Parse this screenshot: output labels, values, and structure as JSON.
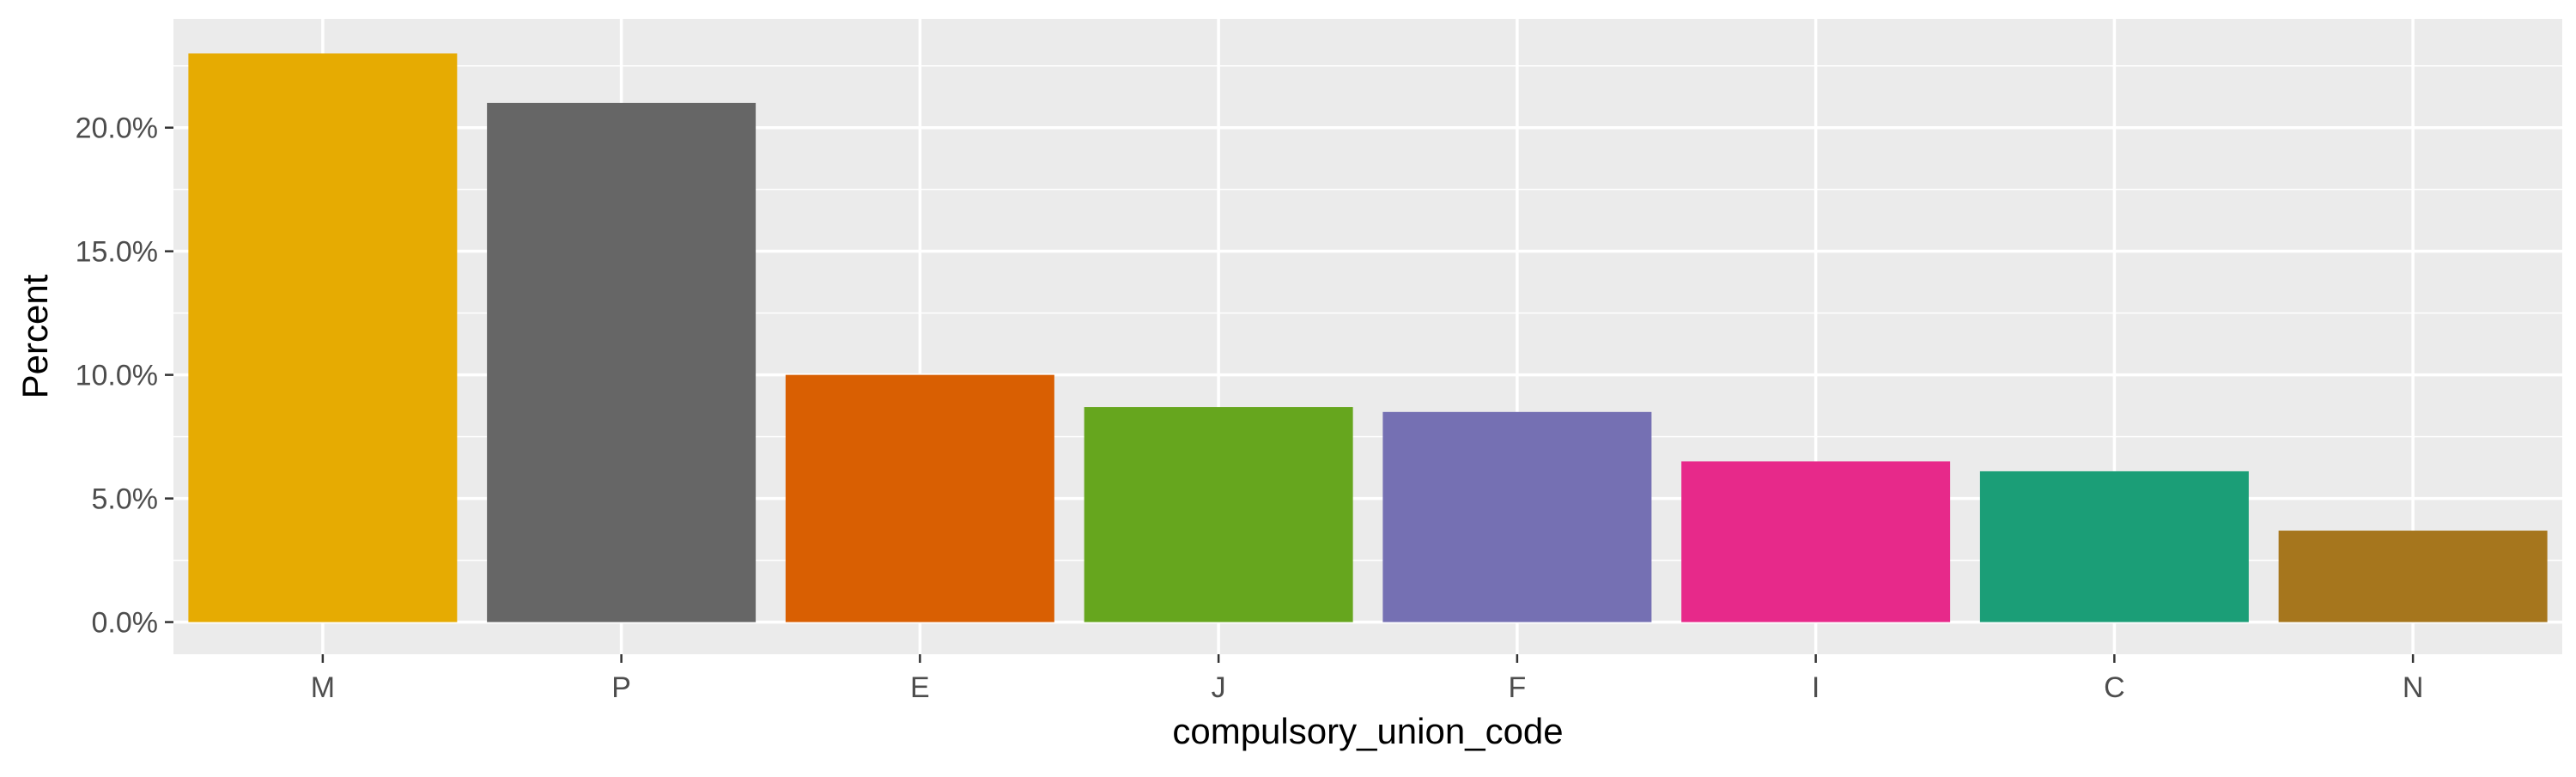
{
  "chart_data": {
    "type": "bar",
    "categories": [
      "M",
      "P",
      "E",
      "J",
      "F",
      "I",
      "C",
      "N"
    ],
    "values": [
      23.0,
      21.0,
      10.0,
      8.7,
      8.5,
      6.5,
      6.1,
      3.7
    ],
    "value_unit": "percent",
    "colors": [
      "#E6AB02",
      "#666666",
      "#D95F02",
      "#66A61E",
      "#7570B3",
      "#E7298A",
      "#1B9E77",
      "#A6761D"
    ],
    "title": "",
    "xlabel": "compulsory_union_code",
    "ylabel": "Percent",
    "ylim": [
      -1.3,
      24.4
    ],
    "yticks": [
      0,
      5,
      10,
      15,
      20
    ],
    "ytick_labels": [
      "0.0%",
      "5.0%",
      "10.0%",
      "15.0%",
      "20.0%"
    ],
    "grid": true,
    "legend": "none",
    "panel_background": "#EBEBEB",
    "grid_color": "#FFFFFF"
  }
}
